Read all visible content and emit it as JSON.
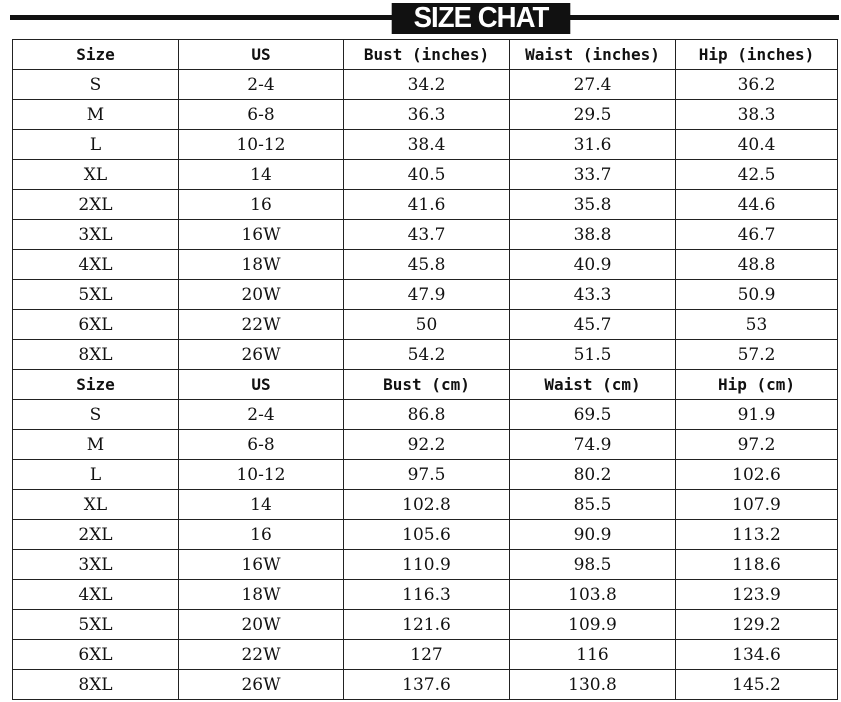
{
  "title": "SIZE CHAT",
  "inches": {
    "headers": [
      "Size",
      "US",
      "Bust (inches)",
      "Waist (inches)",
      "Hip (inches)"
    ],
    "rows": [
      [
        "S",
        "2-4",
        "34.2",
        "27.4",
        "36.2"
      ],
      [
        "M",
        "6-8",
        "36.3",
        "29.5",
        "38.3"
      ],
      [
        "L",
        "10-12",
        "38.4",
        "31.6",
        "40.4"
      ],
      [
        "XL",
        "14",
        "40.5",
        "33.7",
        "42.5"
      ],
      [
        "2XL",
        "16",
        "41.6",
        "35.8",
        "44.6"
      ],
      [
        "3XL",
        "16W",
        "43.7",
        "38.8",
        "46.7"
      ],
      [
        "4XL",
        "18W",
        "45.8",
        "40.9",
        "48.8"
      ],
      [
        "5XL",
        "20W",
        "47.9",
        "43.3",
        "50.9"
      ],
      [
        "6XL",
        "22W",
        "50",
        "45.7",
        "53"
      ],
      [
        "8XL",
        "26W",
        "54.2",
        "51.5",
        "57.2"
      ]
    ]
  },
  "cm": {
    "headers": [
      "Size",
      "US",
      "Bust (cm)",
      "Waist (cm)",
      "Hip (cm)"
    ],
    "rows": [
      [
        "S",
        "2-4",
        "86.8",
        "69.5",
        "91.9"
      ],
      [
        "M",
        "6-8",
        "92.2",
        "74.9",
        "97.2"
      ],
      [
        "L",
        "10-12",
        "97.5",
        "80.2",
        "102.6"
      ],
      [
        "XL",
        "14",
        "102.8",
        "85.5",
        "107.9"
      ],
      [
        "2XL",
        "16",
        "105.6",
        "90.9",
        "113.2"
      ],
      [
        "3XL",
        "16W",
        "110.9",
        "98.5",
        "118.6"
      ],
      [
        "4XL",
        "18W",
        "116.3",
        "103.8",
        "123.9"
      ],
      [
        "5XL",
        "20W",
        "121.6",
        "109.9",
        "129.2"
      ],
      [
        "6XL",
        "22W",
        "127",
        "116",
        "134.6"
      ],
      [
        "8XL",
        "26W",
        "137.6",
        "130.8",
        "145.2"
      ]
    ]
  }
}
